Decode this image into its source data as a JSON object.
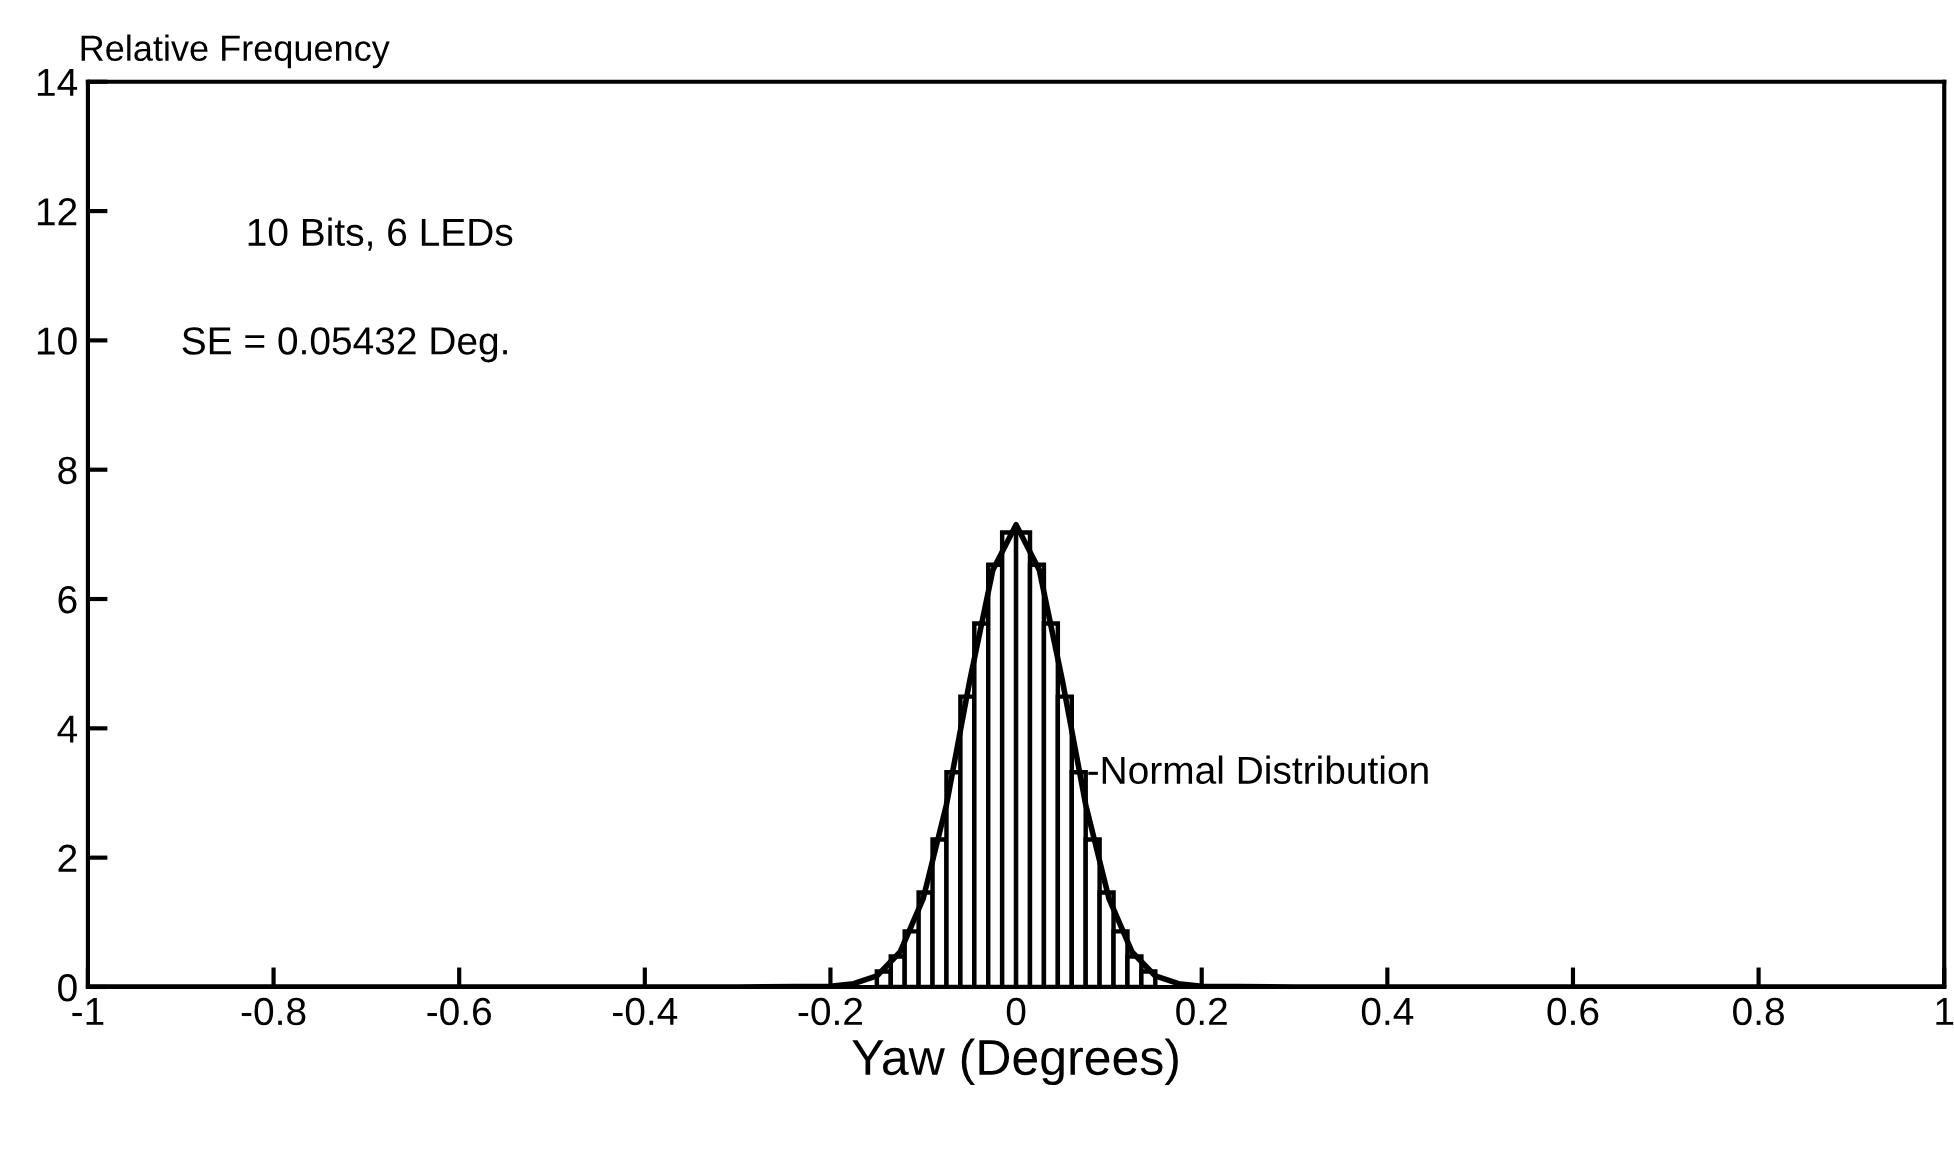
{
  "chart_data": {
    "type": "histogram",
    "xlabel": "Yaw (Degrees)",
    "ylabel": "Relative Frequency",
    "bins": [
      -0.165,
      -0.15,
      -0.135,
      -0.12,
      -0.105,
      -0.09,
      -0.075,
      -0.06,
      -0.045,
      -0.03,
      -0.015,
      0,
      0.015,
      0.03,
      0.045,
      0.06,
      0.075,
      0.09,
      0.105,
      0.12,
      0.135,
      0.15,
      0.165
    ],
    "values": [
      null,
      0.24,
      0.47,
      0.86,
      1.46,
      2.28,
      3.32,
      4.49,
      5.62,
      6.53,
      7.03,
      7.03,
      6.53,
      5.62,
      4.49,
      3.32,
      2.28,
      1.46,
      0.86,
      0.47,
      0.24,
      null
    ],
    "color": "#ffffff",
    "series": [
      {
        "type": "line",
        "color": "#000000",
        "x": [
          -1,
          -0.3,
          -0.2,
          -0.175,
          -0.15,
          -0.125,
          -0.1,
          -0.075,
          -0.05,
          -0.025,
          0,
          0.025,
          0.05,
          0.075,
          0.1,
          0.125,
          0.15,
          0.175,
          0.2,
          0.3,
          1
        ],
        "values": [
          0,
          0,
          0.01,
          0.05,
          0.17,
          0.54,
          1.37,
          2.82,
          4.73,
          6.45,
          7.15,
          6.45,
          4.73,
          2.82,
          1.37,
          0.54,
          0.17,
          0.05,
          0.01,
          0,
          0
        ]
      }
    ],
    "annotations": [
      "10 Bits, 6 LEDs",
      "SE = 0.05432 Deg.",
      {
        "text": "-Normal Distribution",
        "x": 0.07,
        "y": 3.3
      }
    ],
    "xlim": [
      -1,
      1
    ],
    "ylim": [
      0,
      14
    ],
    "xticks": [
      -1,
      -0.8,
      -0.6,
      -0.4,
      -0.2,
      0,
      0.2,
      0.4,
      0.6,
      0.8,
      1
    ],
    "yticks": [
      0,
      2,
      4,
      6,
      8,
      10,
      12,
      14
    ],
    "grid": false,
    "legend": false
  }
}
